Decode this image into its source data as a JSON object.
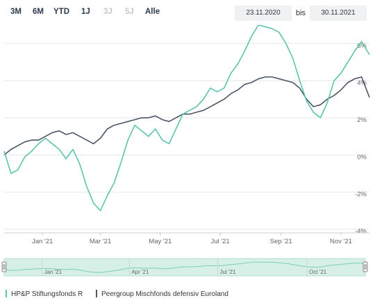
{
  "range_buttons": [
    {
      "label": "3M",
      "enabled": true
    },
    {
      "label": "6M",
      "enabled": true
    },
    {
      "label": "YTD",
      "enabled": true
    },
    {
      "label": "1J",
      "enabled": true
    },
    {
      "label": "3J",
      "enabled": false
    },
    {
      "label": "5J",
      "enabled": false
    },
    {
      "label": "Alle",
      "enabled": true
    }
  ],
  "date_range": {
    "from": "23.11.2020",
    "separator": "bis",
    "to": "30.11.2021"
  },
  "colors": {
    "fund": "#5cc4a8",
    "peer": "#4a5566",
    "navigator_fill": "#d6efe7",
    "grid": "#e8e8e8"
  },
  "chart_data": {
    "type": "line",
    "title": "",
    "xlabel": "",
    "ylabel": "",
    "x_start": "2020-11-23",
    "x_end": "2021-11-30",
    "x_ticks": [
      "Jan '21",
      "Mar '21",
      "May '21",
      "Jul '21",
      "Sep '21",
      "Nov '21"
    ],
    "x_tick_dates": [
      "2021-01-01",
      "2021-03-01",
      "2021-05-01",
      "2021-07-01",
      "2021-09-01",
      "2021-11-01"
    ],
    "y_ticks": [
      "6%",
      "4%",
      "2%",
      "0%",
      "-2%",
      "-4%"
    ],
    "y_tick_values": [
      6,
      4,
      2,
      0,
      -2,
      -4
    ],
    "ylim": [
      -4.2,
      7.0
    ],
    "series": [
      {
        "name": "HP&P Stiftungsfonds R",
        "color": "#5cc4a8",
        "x": [
          "2020-11-23",
          "2020-11-30",
          "2020-12-07",
          "2020-12-14",
          "2020-12-21",
          "2020-12-28",
          "2021-01-04",
          "2021-01-11",
          "2021-01-18",
          "2021-01-25",
          "2021-02-01",
          "2021-02-08",
          "2021-02-15",
          "2021-02-22",
          "2021-03-01",
          "2021-03-08",
          "2021-03-15",
          "2021-03-22",
          "2021-03-29",
          "2021-04-05",
          "2021-04-12",
          "2021-04-19",
          "2021-04-26",
          "2021-05-03",
          "2021-05-10",
          "2021-05-17",
          "2021-05-24",
          "2021-05-31",
          "2021-06-07",
          "2021-06-14",
          "2021-06-21",
          "2021-06-28",
          "2021-07-05",
          "2021-07-12",
          "2021-07-19",
          "2021-07-26",
          "2021-08-02",
          "2021-08-09",
          "2021-08-16",
          "2021-08-23",
          "2021-08-30",
          "2021-09-06",
          "2021-09-13",
          "2021-09-20",
          "2021-09-27",
          "2021-10-04",
          "2021-10-11",
          "2021-10-18",
          "2021-10-25",
          "2021-11-01",
          "2021-11-08",
          "2021-11-15",
          "2021-11-22",
          "2021-11-30"
        ],
        "y": [
          0.2,
          -1.0,
          -0.8,
          -0.1,
          0.2,
          0.6,
          0.9,
          0.6,
          0.3,
          -0.2,
          0.3,
          -0.5,
          -1.7,
          -2.6,
          -3.0,
          -2.2,
          -1.5,
          -0.4,
          0.8,
          1.6,
          1.3,
          1.0,
          1.4,
          0.8,
          0.6,
          1.4,
          2.2,
          2.4,
          2.6,
          3.0,
          3.6,
          3.4,
          3.6,
          4.4,
          4.9,
          5.6,
          6.4,
          7.0,
          6.9,
          6.8,
          6.6,
          6.0,
          5.2,
          4.0,
          2.9,
          2.3,
          2.0,
          2.8,
          4.0,
          4.4,
          5.0,
          5.6,
          6.1,
          5.4
        ]
      },
      {
        "name": "Peergroup Mischfonds defensiv Euroland",
        "color": "#4a5566",
        "x": [
          "2020-11-23",
          "2020-11-30",
          "2020-12-07",
          "2020-12-14",
          "2020-12-21",
          "2020-12-28",
          "2021-01-04",
          "2021-01-11",
          "2021-01-18",
          "2021-01-25",
          "2021-02-01",
          "2021-02-08",
          "2021-02-15",
          "2021-02-22",
          "2021-03-01",
          "2021-03-08",
          "2021-03-15",
          "2021-03-22",
          "2021-03-29",
          "2021-04-05",
          "2021-04-12",
          "2021-04-19",
          "2021-04-26",
          "2021-05-03",
          "2021-05-10",
          "2021-05-17",
          "2021-05-24",
          "2021-05-31",
          "2021-06-07",
          "2021-06-14",
          "2021-06-21",
          "2021-06-28",
          "2021-07-05",
          "2021-07-12",
          "2021-07-19",
          "2021-07-26",
          "2021-08-02",
          "2021-08-09",
          "2021-08-16",
          "2021-08-23",
          "2021-08-30",
          "2021-09-06",
          "2021-09-13",
          "2021-09-20",
          "2021-09-27",
          "2021-10-04",
          "2021-10-11",
          "2021-10-18",
          "2021-10-25",
          "2021-11-01",
          "2021-11-08",
          "2021-11-15",
          "2021-11-22",
          "2021-11-30"
        ],
        "y": [
          0.0,
          0.3,
          0.5,
          0.7,
          0.8,
          0.8,
          1.0,
          1.2,
          1.3,
          1.1,
          1.2,
          1.0,
          0.8,
          0.6,
          0.9,
          1.4,
          1.6,
          1.7,
          1.8,
          1.9,
          2.0,
          2.0,
          2.1,
          1.9,
          1.8,
          2.0,
          2.2,
          2.2,
          2.3,
          2.4,
          2.6,
          2.8,
          3.0,
          3.3,
          3.5,
          3.8,
          3.9,
          4.1,
          4.2,
          4.2,
          4.1,
          4.0,
          3.9,
          3.6,
          3.0,
          2.6,
          2.7,
          3.0,
          3.2,
          3.5,
          3.9,
          4.1,
          4.2,
          3.1
        ]
      }
    ],
    "grid": true,
    "legend_position": "bottom-left"
  },
  "navigator": {
    "ticks": [
      "Jan '21",
      "Apr '21",
      "Jul '21",
      "Oct '21"
    ],
    "tick_dates": [
      "2021-01-01",
      "2021-04-01",
      "2021-07-01",
      "2021-10-01"
    ]
  },
  "legend": [
    {
      "label": "HP&P Stiftungsfonds R",
      "color": "#5cc4a8"
    },
    {
      "label": "Peergroup Mischfonds defensiv Euroland",
      "color": "#4a5566"
    }
  ]
}
